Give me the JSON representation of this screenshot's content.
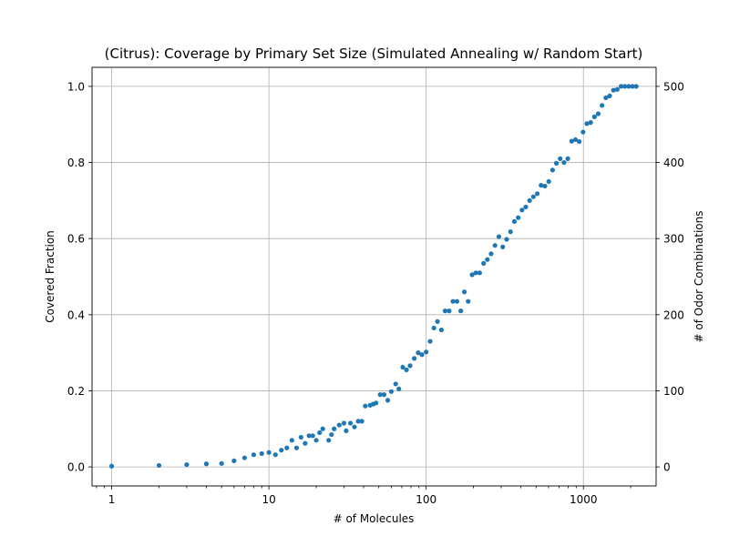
{
  "chart_data": {
    "type": "scatter",
    "title": "(Citrus): Coverage by Primary Set Size (Simulated Annealing w/ Random Start)",
    "xlabel": "# of Molecules",
    "ylabel": "Covered Fraction",
    "y2label": "# of Odor Combinations",
    "xscale": "log",
    "xlim": [
      0.75,
      2900
    ],
    "ylim": [
      -0.05,
      1.05
    ],
    "y2lim": [
      -25,
      525
    ],
    "grid": true,
    "color": "#1f77b4",
    "x_ticks": [
      1,
      10,
      100,
      1000
    ],
    "x_tick_labels": [
      "1",
      "10",
      "100",
      "1000"
    ],
    "y_ticks": [
      0.0,
      0.2,
      0.4,
      0.6,
      0.8,
      1.0
    ],
    "y_tick_labels": [
      "0.0",
      "0.2",
      "0.4",
      "0.6",
      "0.8",
      "1.0"
    ],
    "y2_ticks": [
      0,
      100,
      200,
      300,
      400,
      500
    ],
    "y2_tick_labels": [
      "0",
      "100",
      "200",
      "300",
      "400",
      "500"
    ],
    "x": [
      1,
      2,
      3,
      4,
      5,
      6,
      7,
      8,
      9,
      10,
      11,
      12,
      13,
      14,
      15,
      16,
      17,
      18,
      19,
      20,
      21,
      22,
      24,
      25,
      26,
      28,
      30,
      31,
      33,
      35,
      37,
      39,
      41,
      44,
      46,
      48,
      51,
      54,
      57,
      60,
      64,
      67,
      71,
      75,
      79,
      84,
      89,
      94,
      100,
      106,
      112,
      118,
      125,
      132,
      140,
      148,
      157,
      166,
      175,
      185,
      196,
      207,
      219,
      232,
      245,
      259,
      274,
      290,
      307,
      325,
      344,
      364,
      385,
      407,
      430,
      455,
      481,
      509,
      538,
      569,
      602,
      637,
      673,
      712,
      753,
      796,
      842,
      890,
      941,
      995,
      1052,
      1112,
      1176,
      1243,
      1314,
      1389,
      1469,
      1553,
      1642,
      1736,
      1835,
      1940,
      2051,
      2168
    ],
    "y": [
      0.002,
      0.004,
      0.006,
      0.008,
      0.009,
      0.016,
      0.024,
      0.032,
      0.035,
      0.038,
      0.032,
      0.044,
      0.05,
      0.07,
      0.05,
      0.078,
      0.062,
      0.082,
      0.082,
      0.07,
      0.09,
      0.1,
      0.07,
      0.085,
      0.1,
      0.11,
      0.115,
      0.095,
      0.115,
      0.105,
      0.12,
      0.12,
      0.16,
      0.162,
      0.165,
      0.168,
      0.19,
      0.19,
      0.175,
      0.198,
      0.218,
      0.205,
      0.262,
      0.255,
      0.266,
      0.285,
      0.3,
      0.295,
      0.302,
      0.33,
      0.365,
      0.382,
      0.36,
      0.41,
      0.41,
      0.435,
      0.435,
      0.41,
      0.46,
      0.435,
      0.505,
      0.51,
      0.51,
      0.535,
      0.545,
      0.56,
      0.582,
      0.605,
      0.578,
      0.598,
      0.618,
      0.645,
      0.655,
      0.675,
      0.683,
      0.7,
      0.71,
      0.718,
      0.74,
      0.738,
      0.75,
      0.78,
      0.798,
      0.81,
      0.8,
      0.81,
      0.856,
      0.86,
      0.855,
      0.88,
      0.902,
      0.905,
      0.92,
      0.928,
      0.95,
      0.97,
      0.975,
      0.99,
      0.992,
      1.0,
      1.0,
      1.0,
      1.0,
      1.0
    ]
  }
}
